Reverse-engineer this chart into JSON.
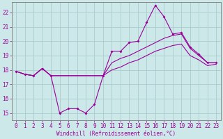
{
  "xlabel": "Windchill (Refroidissement éolien,°C)",
  "background_color": "#cce8e8",
  "grid_color": "#aacccc",
  "line_color": "#990099",
  "hours": [
    0,
    1,
    2,
    3,
    4,
    5,
    6,
    7,
    8,
    9,
    10,
    11,
    12,
    13,
    14,
    15,
    16,
    17,
    18,
    19,
    20,
    21,
    22,
    23
  ],
  "ylim": [
    14.5,
    22.7
  ],
  "yticks": [
    15,
    16,
    17,
    18,
    19,
    20,
    21,
    22
  ],
  "line1": [
    17.9,
    17.7,
    17.6,
    18.1,
    17.6,
    15.0,
    15.3,
    15.3,
    15.0,
    15.6,
    17.6,
    19.3,
    19.3,
    19.9,
    20.0,
    21.3,
    22.5,
    21.7,
    20.5,
    20.6,
    19.6,
    19.1,
    18.5,
    18.5
  ],
  "line2": [
    17.9,
    17.7,
    17.6,
    18.1,
    17.6,
    17.6,
    17.6,
    17.6,
    17.6,
    17.6,
    17.6,
    18.5,
    18.8,
    19.0,
    19.3,
    19.6,
    19.9,
    20.2,
    20.4,
    20.5,
    19.5,
    19.0,
    18.5,
    18.5
  ],
  "line3": [
    17.9,
    17.7,
    17.6,
    18.1,
    17.6,
    17.6,
    17.6,
    17.6,
    17.6,
    17.6,
    17.6,
    18.0,
    18.2,
    18.5,
    18.7,
    19.0,
    19.3,
    19.5,
    19.7,
    19.8,
    19.0,
    18.7,
    18.3,
    18.4
  ],
  "tick_fontsize": 5.5,
  "xlabel_fontsize": 5.5
}
